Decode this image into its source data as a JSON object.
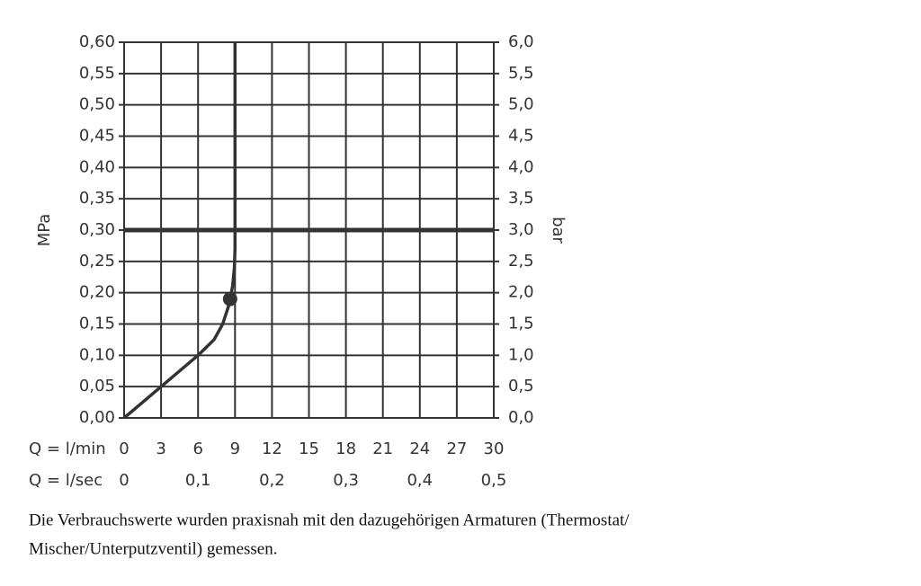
{
  "chart_data": {
    "type": "line",
    "xlim": [
      0,
      30
    ],
    "xticks": [
      0,
      3,
      6,
      9,
      12,
      15,
      18,
      21,
      24,
      27,
      30
    ],
    "x_label": "Q = l/min",
    "x2lim": [
      0,
      0.5
    ],
    "x2ticks": [
      {
        "value": 0,
        "label": "0"
      },
      {
        "value": 0.1,
        "label": "0,1"
      },
      {
        "value": 0.2,
        "label": "0,2"
      },
      {
        "value": 0.3,
        "label": "0,3"
      },
      {
        "value": 0.4,
        "label": "0,4"
      },
      {
        "value": 0.5,
        "label": "0,5"
      }
    ],
    "x2_label": "Q = l/sec",
    "ylim": [
      0,
      0.6
    ],
    "y_label": "MPa",
    "yticks": [
      {
        "value": 0,
        "label": "0,00"
      },
      {
        "value": 0.05,
        "label": "0,05"
      },
      {
        "value": 0.1,
        "label": "0,10"
      },
      {
        "value": 0.15,
        "label": "0,15"
      },
      {
        "value": 0.2,
        "label": "0,20"
      },
      {
        "value": 0.25,
        "label": "0,25"
      },
      {
        "value": 0.3,
        "label": "0,30"
      },
      {
        "value": 0.35,
        "label": "0,35"
      },
      {
        "value": 0.4,
        "label": "0,40"
      },
      {
        "value": 0.45,
        "label": "0,45"
      },
      {
        "value": 0.5,
        "label": "0,50"
      },
      {
        "value": 0.55,
        "label": "0,55"
      },
      {
        "value": 0.6,
        "label": "0,60"
      }
    ],
    "y2lim": [
      0,
      6
    ],
    "y2_label": "bar",
    "y2ticks": [
      {
        "value": 0,
        "label": "0,0"
      },
      {
        "value": 0.5,
        "label": "0,5"
      },
      {
        "value": 1,
        "label": "1,0"
      },
      {
        "value": 1.5,
        "label": "1,5"
      },
      {
        "value": 2,
        "label": "2,0"
      },
      {
        "value": 2.5,
        "label": "2,5"
      },
      {
        "value": 3,
        "label": "3,0"
      },
      {
        "value": 3.5,
        "label": "3,5"
      },
      {
        "value": 4,
        "label": "4,0"
      },
      {
        "value": 4.5,
        "label": "4,5"
      },
      {
        "value": 5,
        "label": "5,0"
      },
      {
        "value": 5.5,
        "label": "5,5"
      },
      {
        "value": 6,
        "label": "6,0"
      }
    ],
    "grid": true,
    "color": "#333333",
    "x": [
      0,
      3,
      6,
      7.3,
      8.0,
      8.5,
      8.8,
      8.95,
      9,
      9,
      9
    ],
    "values": [
      0,
      0.05,
      0.1,
      0.125,
      0.15,
      0.18,
      0.21,
      0.24,
      0.27,
      0.3,
      0.6
    ],
    "reference_y": 0.3,
    "point": {
      "x": 8.6,
      "y": 0.19
    },
    "note": [
      "Die Verbrauchswerte wurden praxisnah mit den dazugehörigen Armaturen (Thermostat/",
      "Mischer/Unterputzventil) gemessen."
    ]
  }
}
